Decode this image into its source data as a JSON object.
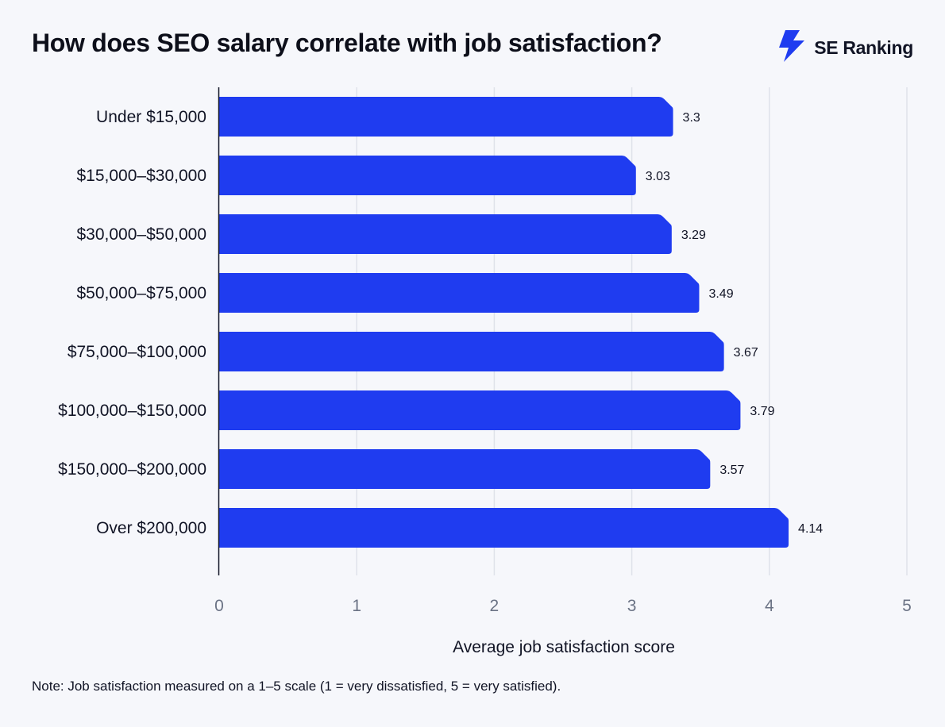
{
  "header": {
    "title": "How does SEO salary correlate with job satisfaction?",
    "brand": "SE Ranking"
  },
  "chart_data": {
    "type": "bar",
    "orientation": "horizontal",
    "title": "How does SEO salary correlate with job satisfaction?",
    "categories": [
      "Under $15,000",
      "$15,000–$30,000",
      "$30,000–$50,000",
      "$50,000–$75,000",
      "$75,000–$100,000",
      "$100,000–$150,000",
      "$150,000–$200,000",
      "Over $200,000"
    ],
    "values": [
      3.3,
      3.03,
      3.29,
      3.49,
      3.67,
      3.79,
      3.57,
      4.14
    ],
    "value_labels": [
      "3.3",
      "3.03",
      "3.29",
      "3.49",
      "3.67",
      "3.79",
      "3.57",
      "4.14"
    ],
    "xlabel": "Average job satisfaction score",
    "ylabel": "",
    "xlim": [
      0,
      5
    ],
    "xticks": [
      "0",
      "1",
      "2",
      "3",
      "4",
      "5"
    ],
    "grid": true,
    "bar_color": "#1f3cf0"
  },
  "note": "Note: Job satisfaction measured on a 1–5 scale (1 = very dissatisfied, 5 = very satisfied)."
}
